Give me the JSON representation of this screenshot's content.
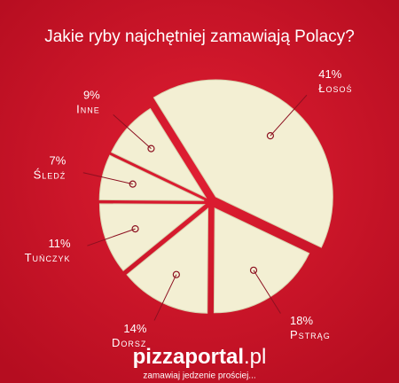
{
  "chart_data": {
    "type": "pie",
    "title": "Jakie ryby najchętniej zamawiają Polacy?",
    "categories": [
      "Łosoś",
      "Pstrąg",
      "Dorsz",
      "Tuńczyk",
      "Śledź",
      "Inne"
    ],
    "values": [
      41,
      18,
      14,
      11,
      7,
      9
    ],
    "value_labels": [
      "41%",
      "18%",
      "14%",
      "11%",
      "7%",
      "9%"
    ],
    "color": "#f3efd3"
  },
  "footer": {
    "logo_name": "pizzaportal",
    "logo_domain": ".pl",
    "tagline": "zamawiaj jedzenie prościej..."
  }
}
